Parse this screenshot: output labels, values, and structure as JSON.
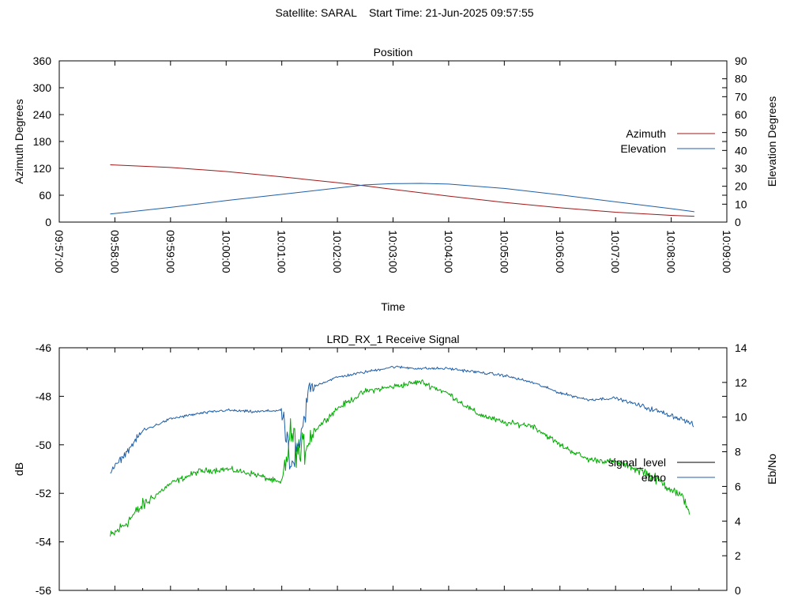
{
  "header": {
    "title": "Satellite: SARAL    Start Time: 21-Jun-2025 09:57:55"
  },
  "colors": {
    "azimuth": "#a01818",
    "elevation": "#1f5fa8",
    "ebno": "#1f5fa8",
    "signal_level": "#00aa00",
    "signal_level_legend": "#000000",
    "axis": "#000000"
  },
  "chart_data": [
    {
      "type": "line",
      "title": "Position",
      "xlabel": "Time",
      "ylabel": "Azimuth Degrees",
      "y2label": "Elevation Degrees",
      "xlim": [
        "09:57:00",
        "10:09:00"
      ],
      "xticks": [
        "09:57:00",
        "09:58:00",
        "09:59:00",
        "10:00:00",
        "10:01:00",
        "10:02:00",
        "10:03:00",
        "10:04:00",
        "10:05:00",
        "10:06:00",
        "10:07:00",
        "10:08:00",
        "10:09:00"
      ],
      "ylim": [
        0,
        360
      ],
      "yticks": [
        0,
        60,
        120,
        180,
        240,
        300,
        360
      ],
      "y2lim": [
        0,
        90
      ],
      "y2ticks": [
        0,
        10,
        20,
        30,
        40,
        50,
        60,
        70,
        80,
        90
      ],
      "legend_position": "right",
      "series": [
        {
          "name": "Azimuth",
          "axis": "left",
          "x": [
            "09:57:55",
            "09:59:00",
            "10:00:00",
            "10:01:00",
            "10:02:00",
            "10:02:30",
            "10:03:00",
            "10:04:00",
            "10:05:00",
            "10:06:00",
            "10:07:00",
            "10:08:00",
            "10:08:25"
          ],
          "values": [
            128,
            122,
            113,
            101,
            88,
            81,
            73,
            58,
            44,
            32,
            22,
            15,
            13
          ]
        },
        {
          "name": "Elevation",
          "axis": "right",
          "x": [
            "09:57:55",
            "09:59:00",
            "10:00:00",
            "10:01:00",
            "10:02:00",
            "10:02:30",
            "10:03:00",
            "10:03:30",
            "10:04:00",
            "10:05:00",
            "10:06:00",
            "10:07:00",
            "10:08:00",
            "10:08:25"
          ],
          "values": [
            4.5,
            8.2,
            12.0,
            15.5,
            19.0,
            20.8,
            21.5,
            21.6,
            21.2,
            18.8,
            15.2,
            11.3,
            7.5,
            5.8
          ]
        }
      ]
    },
    {
      "type": "line",
      "title": "LRD_RX_1 Receive Signal",
      "ylabel": "dB",
      "y2label": "Eb/No",
      "xlim": [
        "09:57:00",
        "10:09:00"
      ],
      "ylim": [
        -56,
        -46
      ],
      "yticks": [
        -56,
        -54,
        -52,
        -50,
        -48,
        -46
      ],
      "y2lim": [
        0,
        14
      ],
      "y2ticks": [
        0,
        2,
        4,
        6,
        8,
        10,
        12,
        14
      ],
      "legend_position": "right",
      "series": [
        {
          "name": "signal_level",
          "axis": "left",
          "x": [
            "09:57:55",
            "09:58:10",
            "09:58:30",
            "09:59:00",
            "09:59:30",
            "10:00:00",
            "10:00:30",
            "10:01:00",
            "10:01:10",
            "10:01:20",
            "10:01:30",
            "10:02:00",
            "10:02:30",
            "10:03:00",
            "10:03:30",
            "10:04:00",
            "10:04:30",
            "10:05:00",
            "10:05:30",
            "10:06:00",
            "10:06:30",
            "10:07:00",
            "10:07:30",
            "10:08:00",
            "10:08:15",
            "10:08:20"
          ],
          "values": [
            -53.8,
            -53.3,
            -52.5,
            -51.6,
            -51.1,
            -51.0,
            -51.2,
            -51.6,
            -49.5,
            -50.5,
            -49.6,
            -48.5,
            -47.8,
            -47.6,
            -47.4,
            -47.9,
            -48.7,
            -49.1,
            -49.2,
            -50.0,
            -50.6,
            -50.7,
            -51.1,
            -51.8,
            -52.3,
            -52.8
          ]
        },
        {
          "name": "ebno",
          "axis": "right",
          "x": [
            "09:57:55",
            "09:58:10",
            "09:58:30",
            "09:59:00",
            "09:59:30",
            "10:00:00",
            "10:00:30",
            "10:01:00",
            "10:01:10",
            "10:01:20",
            "10:01:30",
            "10:02:00",
            "10:02:30",
            "10:03:00",
            "10:03:30",
            "10:04:00",
            "10:04:30",
            "10:05:00",
            "10:05:30",
            "10:06:00",
            "10:06:30",
            "10:07:00",
            "10:07:30",
            "10:08:00",
            "10:08:15",
            "10:08:25"
          ],
          "values": [
            6.8,
            7.8,
            9.2,
            9.9,
            10.2,
            10.4,
            10.3,
            10.4,
            7.0,
            8.5,
            11.7,
            12.3,
            12.6,
            12.9,
            12.8,
            12.8,
            12.6,
            12.4,
            12.0,
            11.4,
            11.0,
            11.1,
            10.6,
            10.1,
            9.8,
            9.5
          ]
        }
      ]
    }
  ]
}
